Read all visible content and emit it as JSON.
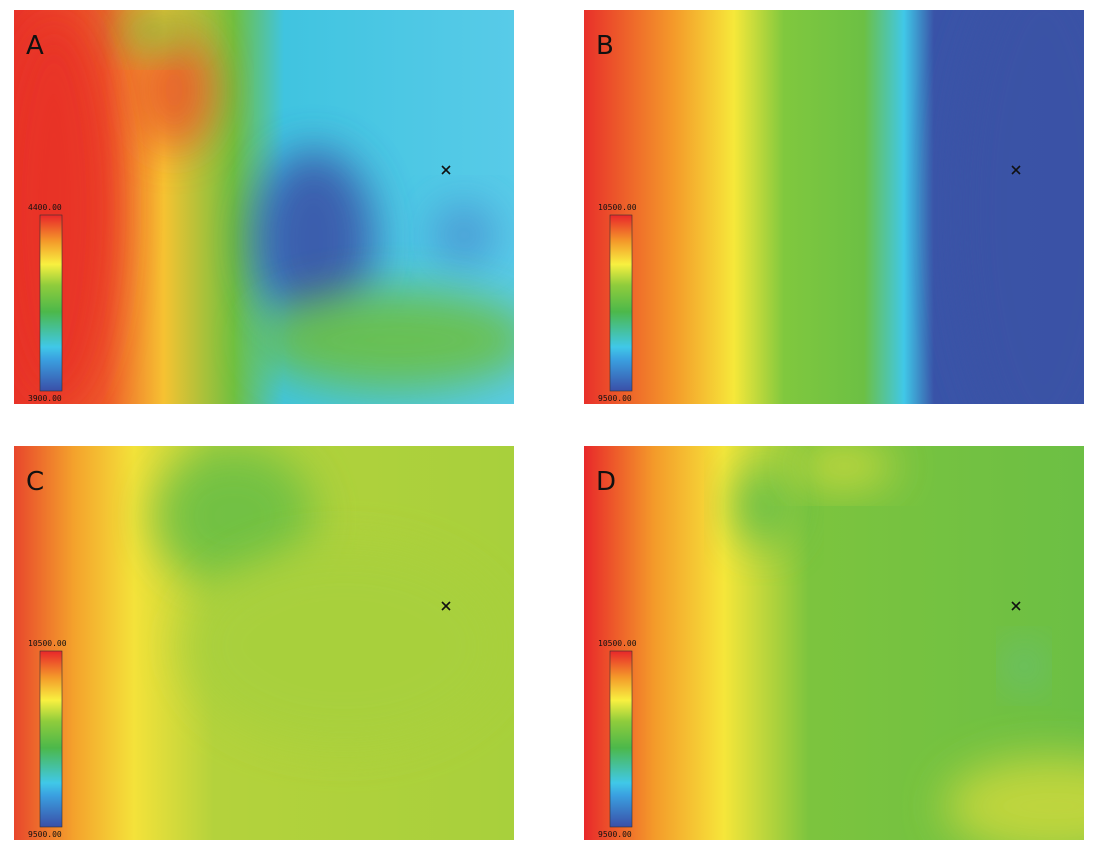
{
  "panels": [
    {
      "label": "A",
      "colorbar": {
        "max": "4400.00",
        "min": "3900.00"
      }
    },
    {
      "label": "B",
      "colorbar": {
        "max": "10500.00",
        "min": "9500.00"
      }
    },
    {
      "label": "C",
      "colorbar": {
        "max": "10500.00",
        "min": "9500.00"
      }
    },
    {
      "label": "D",
      "colorbar": {
        "max": "10500.00",
        "min": "9500.00"
      }
    }
  ]
}
